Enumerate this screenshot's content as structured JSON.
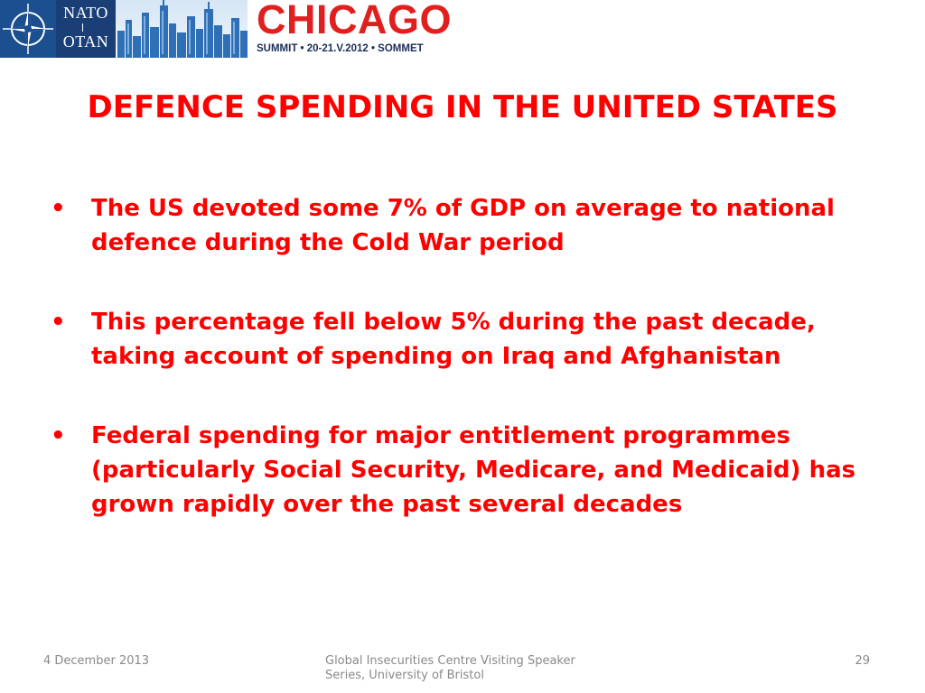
{
  "banner": {
    "nato_line1": "NATO",
    "nato_line2": "OTAN",
    "summit_city": "CHICAGO",
    "summit_subtitle": "SUMMIT • 20-21.V.2012 • SOMMET",
    "colors": {
      "nato_blue": "#1b4f8f",
      "summit_red": "#e0201f",
      "summit_navy": "#1c2f5a"
    }
  },
  "slide": {
    "title": "DEFENCE SPENDING IN THE UNITED STATES",
    "bullet_char": "•",
    "bullets": [
      "The US devoted some 7% of GDP on average to national defence during the Cold War period",
      "This percentage fell below 5% during the past decade, taking account of spending on Iraq and Afghanistan",
      "Federal spending for major entitlement programmes (particularly Social Security, Medicare, and Medicaid) has grown rapidly over the past several decades"
    ],
    "text_color": "#ff0000"
  },
  "footer": {
    "date": "4 December 2013",
    "center": "Global Insecurities Centre Visiting Speaker Series, University of Bristol",
    "page_number": "29"
  }
}
